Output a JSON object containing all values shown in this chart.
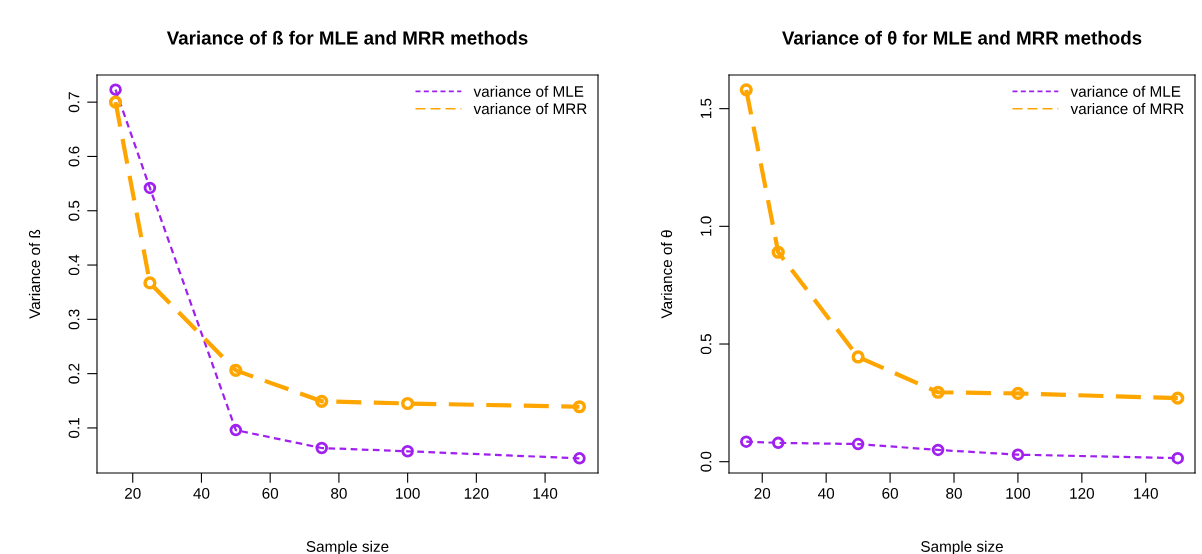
{
  "chart_data": [
    {
      "type": "line",
      "title": "Variance of ß for MLE and MRR methods",
      "xlabel": "Sample size",
      "ylabel": "Variance of ß",
      "x": [
        15,
        25,
        50,
        75,
        100,
        150
      ],
      "series": [
        {
          "name": "variance of MLE",
          "color": "#a020f0",
          "line_style": "dotted",
          "values": [
            0.723,
            0.542,
            0.096,
            0.063,
            0.057,
            0.044
          ]
        },
        {
          "name": "variance of MRR",
          "color": "#ffa500",
          "line_style": "dashed",
          "values": [
            0.7,
            0.367,
            0.206,
            0.149,
            0.145,
            0.139
          ]
        }
      ],
      "xlim": [
        9.6,
        155.4
      ],
      "xticks": [
        20,
        40,
        60,
        80,
        100,
        120,
        140
      ],
      "ylim": [
        0.017,
        0.75
      ],
      "yticks": [
        0.1,
        0.2,
        0.3,
        0.4,
        0.5,
        0.6,
        0.7
      ],
      "marker": "circle",
      "legend": "top right",
      "grid": false
    },
    {
      "type": "line",
      "title": "Variance of θ for MLE and MRR methods",
      "xlabel": "Sample size",
      "ylabel": "Variance of θ",
      "x": [
        15,
        25,
        50,
        75,
        100,
        150
      ],
      "series": [
        {
          "name": "variance of MLE",
          "color": "#a020f0",
          "line_style": "dotted",
          "values": [
            0.085,
            0.08,
            0.075,
            0.05,
            0.03,
            0.015
          ]
        },
        {
          "name": "variance of MRR",
          "color": "#ffa500",
          "line_style": "dashed",
          "values": [
            1.58,
            0.89,
            0.445,
            0.295,
            0.29,
            0.27
          ]
        }
      ],
      "xlim": [
        9.6,
        155.4
      ],
      "xticks": [
        20,
        40,
        60,
        80,
        100,
        120,
        140
      ],
      "ylim": [
        -0.048,
        1.643
      ],
      "yticks": [
        {
          "value": 0,
          "label": "0.0"
        },
        0.5,
        {
          "value": 1,
          "label": "1.0"
        },
        1.5
      ],
      "marker": "circle",
      "legend": "top right",
      "grid": false
    }
  ]
}
